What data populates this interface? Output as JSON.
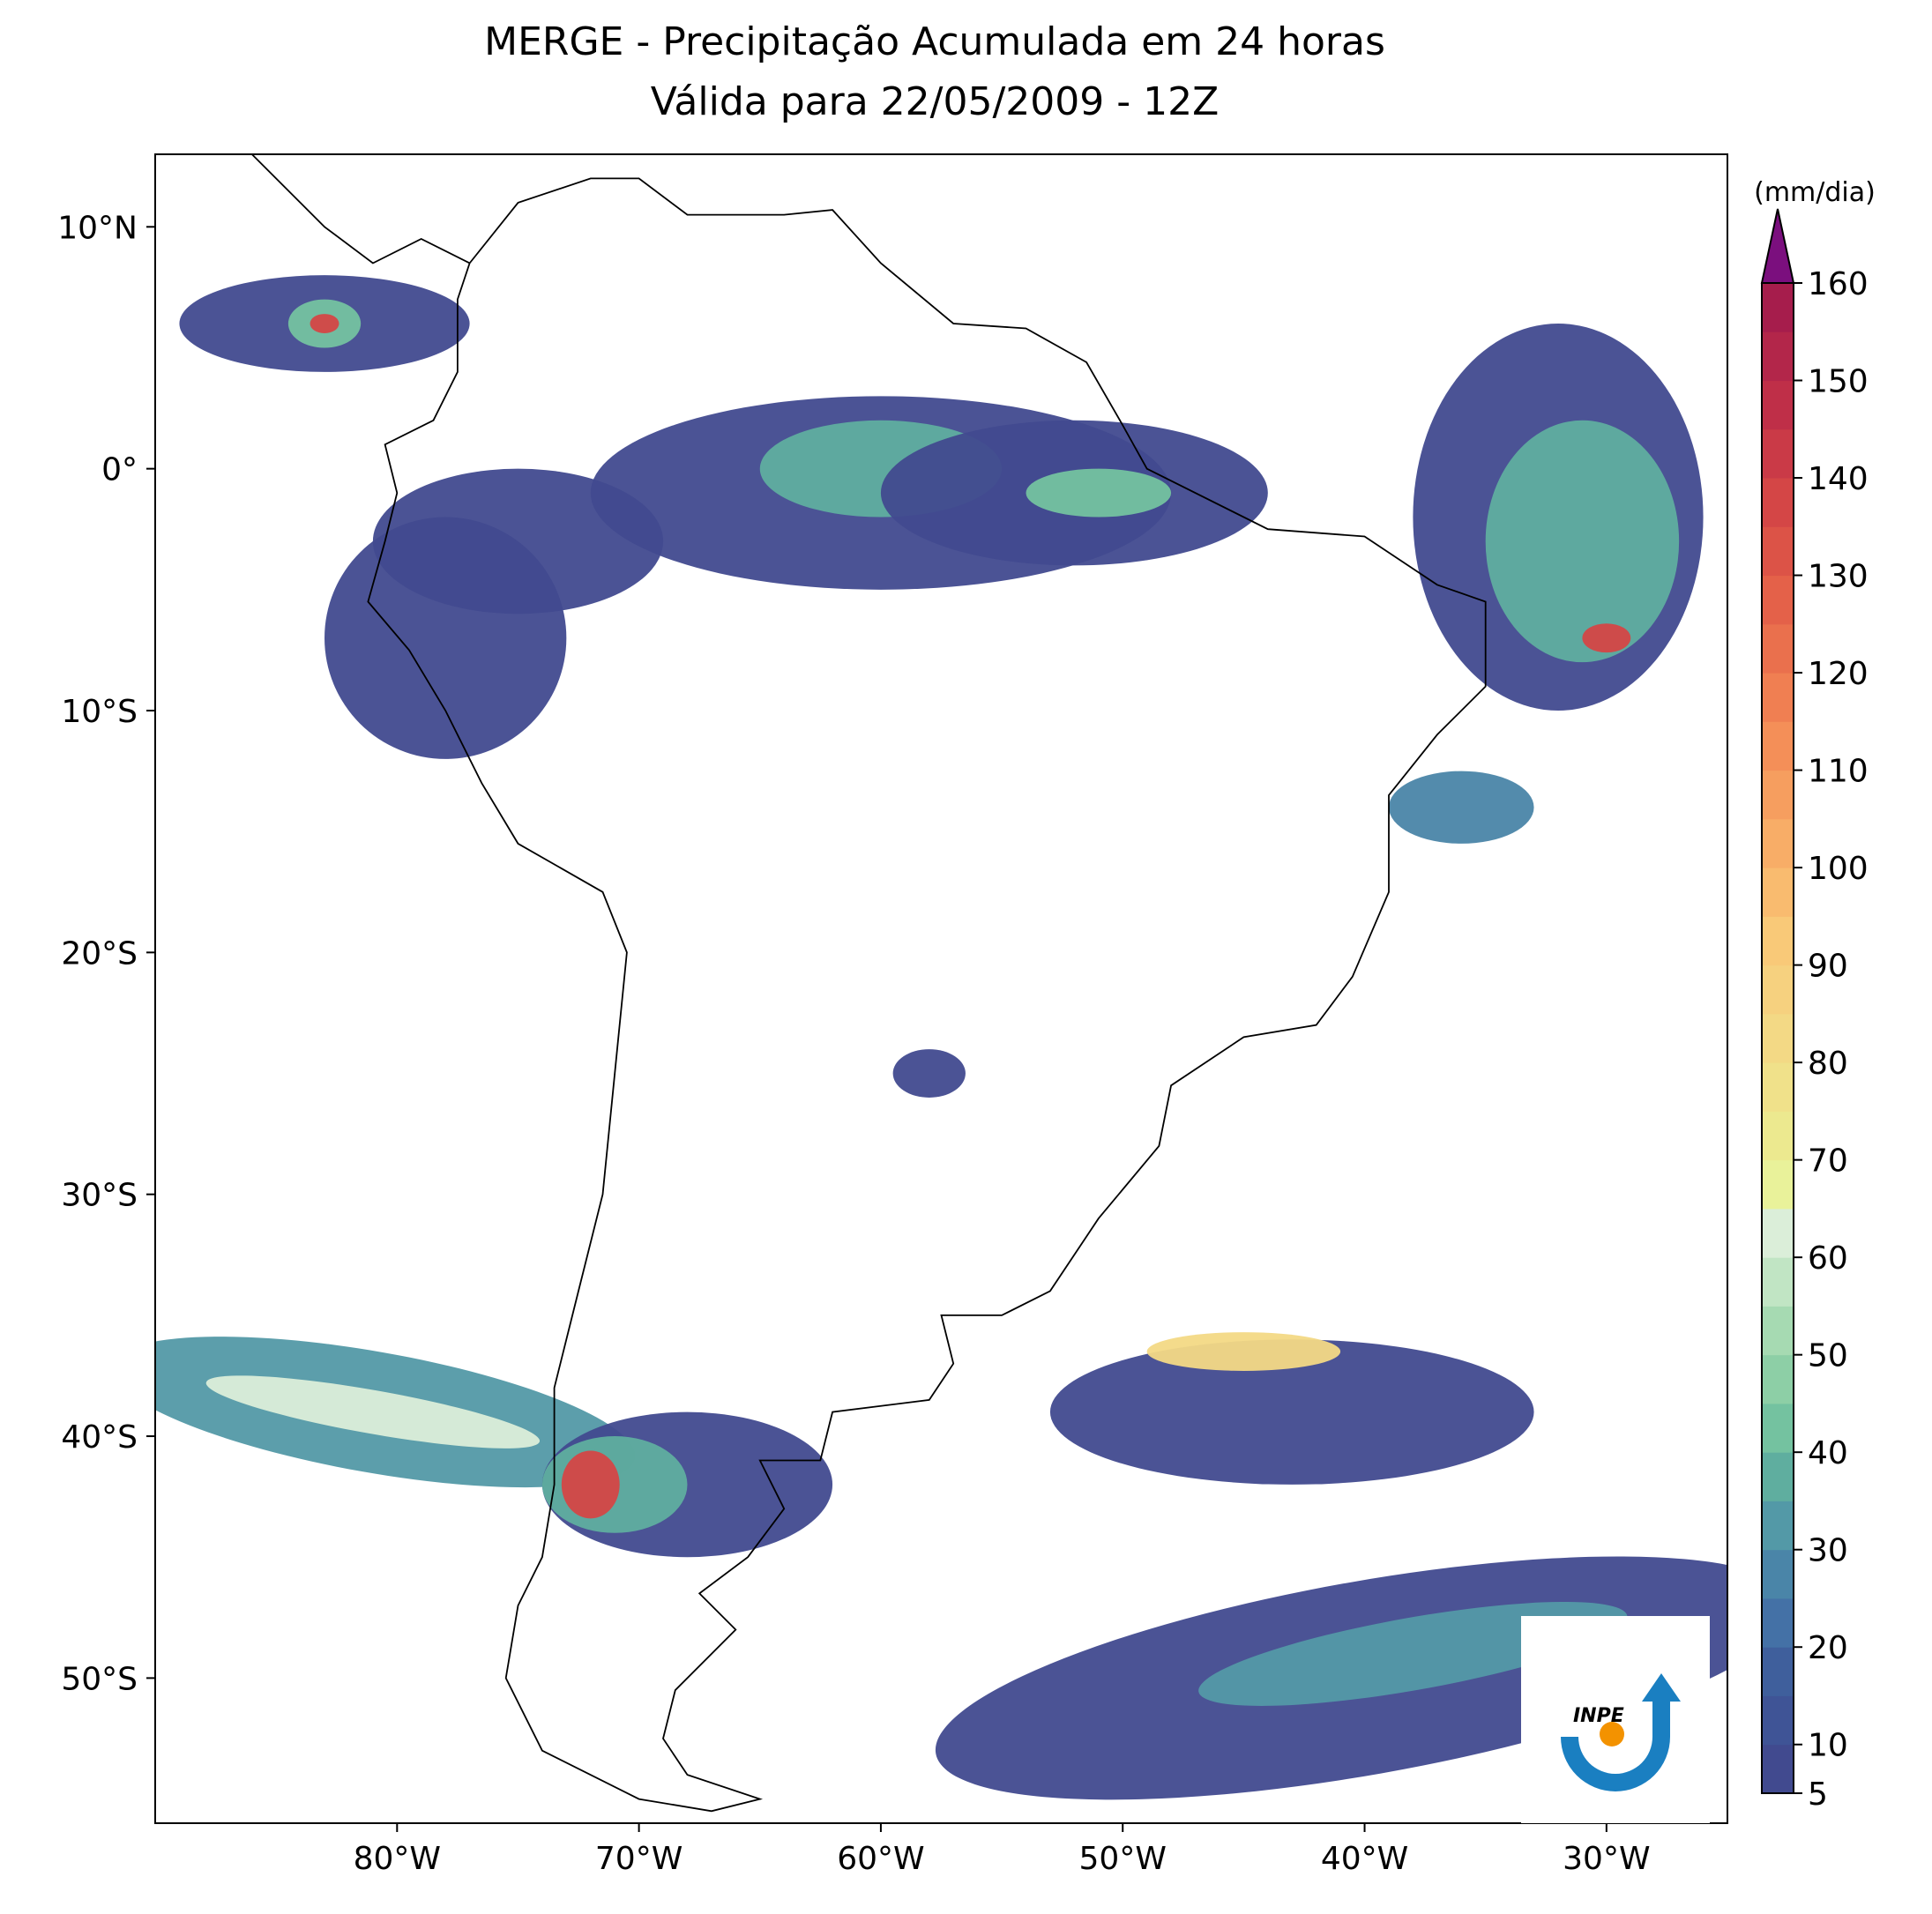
{
  "chart_data": {
    "type": "map",
    "title": "MERGE - Precipitação Acumulada em 24 horas",
    "subtitle": "Válida para 22/05/2009 - 12Z",
    "xlim": [
      -90,
      -25
    ],
    "ylim": [
      -56,
      13
    ],
    "xticks": [
      {
        "value": -80,
        "label": "80°W"
      },
      {
        "value": -70,
        "label": "70°W"
      },
      {
        "value": -60,
        "label": "60°W"
      },
      {
        "value": -50,
        "label": "50°W"
      },
      {
        "value": -40,
        "label": "40°W"
      },
      {
        "value": -30,
        "label": "30°W"
      }
    ],
    "yticks": [
      {
        "value": 10,
        "label": "10°N"
      },
      {
        "value": 0,
        "label": "0°"
      },
      {
        "value": -10,
        "label": "10°S"
      },
      {
        "value": -20,
        "label": "20°S"
      },
      {
        "value": -30,
        "label": "30°S"
      },
      {
        "value": -40,
        "label": "40°S"
      },
      {
        "value": -50,
        "label": "50°S"
      }
    ],
    "colorbar": {
      "label": "(mm/dia)",
      "lim": [
        5,
        160
      ],
      "ticks": [
        5,
        10,
        20,
        30,
        40,
        50,
        60,
        70,
        80,
        90,
        100,
        110,
        120,
        130,
        140,
        150,
        160
      ],
      "colors": [
        "#414a8f",
        "#3f5496",
        "#3f5f9c",
        "#4471a6",
        "#4a85a8",
        "#5399a7",
        "#5fae9f",
        "#74c2a0",
        "#8dcfa6",
        "#a6dab2",
        "#c1e5c4",
        "#dbeed9",
        "#e9f29a",
        "#ece98f",
        "#f0e18a",
        "#f3d985",
        "#f6d17f",
        "#f9c978",
        "#f9bb6f",
        "#f8ad67",
        "#f69e5f",
        "#f48f58",
        "#f07f52",
        "#ea704d",
        "#e46149",
        "#dc5347",
        "#d44646",
        "#ca3a47",
        "#bf2f48",
        "#b3264a",
        "#a61d4c"
      ],
      "extend": "max",
      "extend_color": "#7b0f7e"
    },
    "logo_text": "INPE"
  }
}
